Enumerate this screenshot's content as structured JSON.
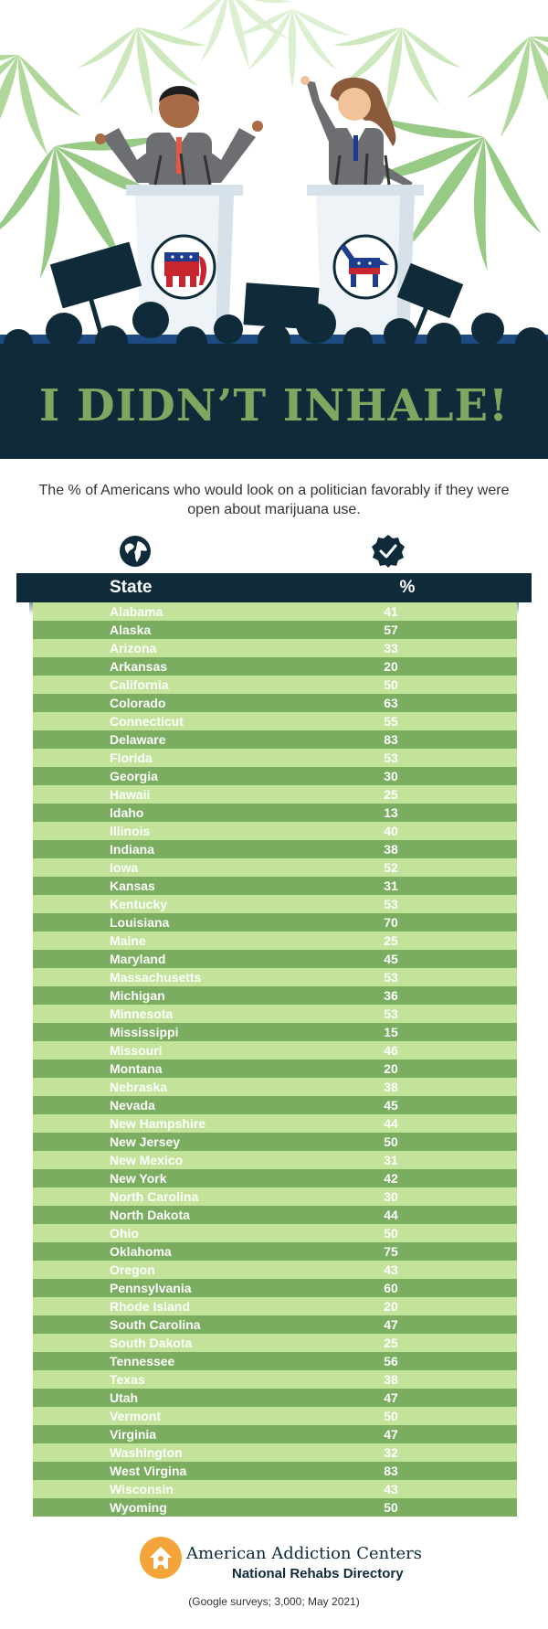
{
  "headline": "I DIDN’T INHALE!",
  "subtitle": "The % of Americans who would look on a politician favorably if they were open about marijuana use.",
  "icons": {
    "state_column": "globe-icon",
    "percent_column": "check-badge-icon"
  },
  "colors": {
    "navy": "#0f2b3a",
    "headline_green": "#7fa760",
    "row_light": "#c3e39b",
    "row_dark": "#7aad5f",
    "republican_red": "#c8262f",
    "democrat_blue": "#1f3d8f"
  },
  "footer": {
    "brand": "American Addiction Centers",
    "sub_brand": "National Rehabs Directory",
    "source": "(Google surveys; 3,000; May 2021)"
  },
  "chart_data": {
    "type": "table",
    "columns": [
      "State",
      "%"
    ],
    "rows": [
      [
        "Alabama",
        41
      ],
      [
        "Alaska",
        57
      ],
      [
        "Arizona",
        33
      ],
      [
        "Arkansas",
        20
      ],
      [
        "California",
        50
      ],
      [
        "Colorado",
        63
      ],
      [
        "Connecticut",
        55
      ],
      [
        "Delaware",
        83
      ],
      [
        "Florida",
        53
      ],
      [
        "Georgia",
        30
      ],
      [
        "Hawaii",
        25
      ],
      [
        "Idaho",
        13
      ],
      [
        "Illinois",
        40
      ],
      [
        "Indiana",
        38
      ],
      [
        "Iowa",
        52
      ],
      [
        "Kansas",
        31
      ],
      [
        "Kentucky",
        53
      ],
      [
        "Louisiana",
        70
      ],
      [
        "Maine",
        25
      ],
      [
        "Maryland",
        45
      ],
      [
        "Massachusetts",
        53
      ],
      [
        "Michigan",
        36
      ],
      [
        "Minnesota",
        53
      ],
      [
        "Mississippi",
        15
      ],
      [
        "Missouri",
        46
      ],
      [
        "Montana",
        20
      ],
      [
        "Nebraska",
        38
      ],
      [
        "Nevada",
        45
      ],
      [
        "New Hampshire",
        44
      ],
      [
        "New Jersey",
        50
      ],
      [
        "New Mexico",
        31
      ],
      [
        "New York",
        42
      ],
      [
        "North Carolina",
        30
      ],
      [
        "North Dakota",
        44
      ],
      [
        "Ohio",
        50
      ],
      [
        "Oklahoma",
        75
      ],
      [
        "Oregon",
        43
      ],
      [
        "Pennsylvania",
        60
      ],
      [
        "Rhode Island",
        20
      ],
      [
        "South Carolina",
        47
      ],
      [
        "South Dakota",
        25
      ],
      [
        "Tennessee",
        56
      ],
      [
        "Texas",
        38
      ],
      [
        "Utah",
        47
      ],
      [
        "Vermont",
        50
      ],
      [
        "Virginia",
        47
      ],
      [
        "Washington",
        32
      ],
      [
        "West Virgina",
        83
      ],
      [
        "Wisconsin",
        43
      ],
      [
        "Wyoming",
        50
      ]
    ]
  }
}
